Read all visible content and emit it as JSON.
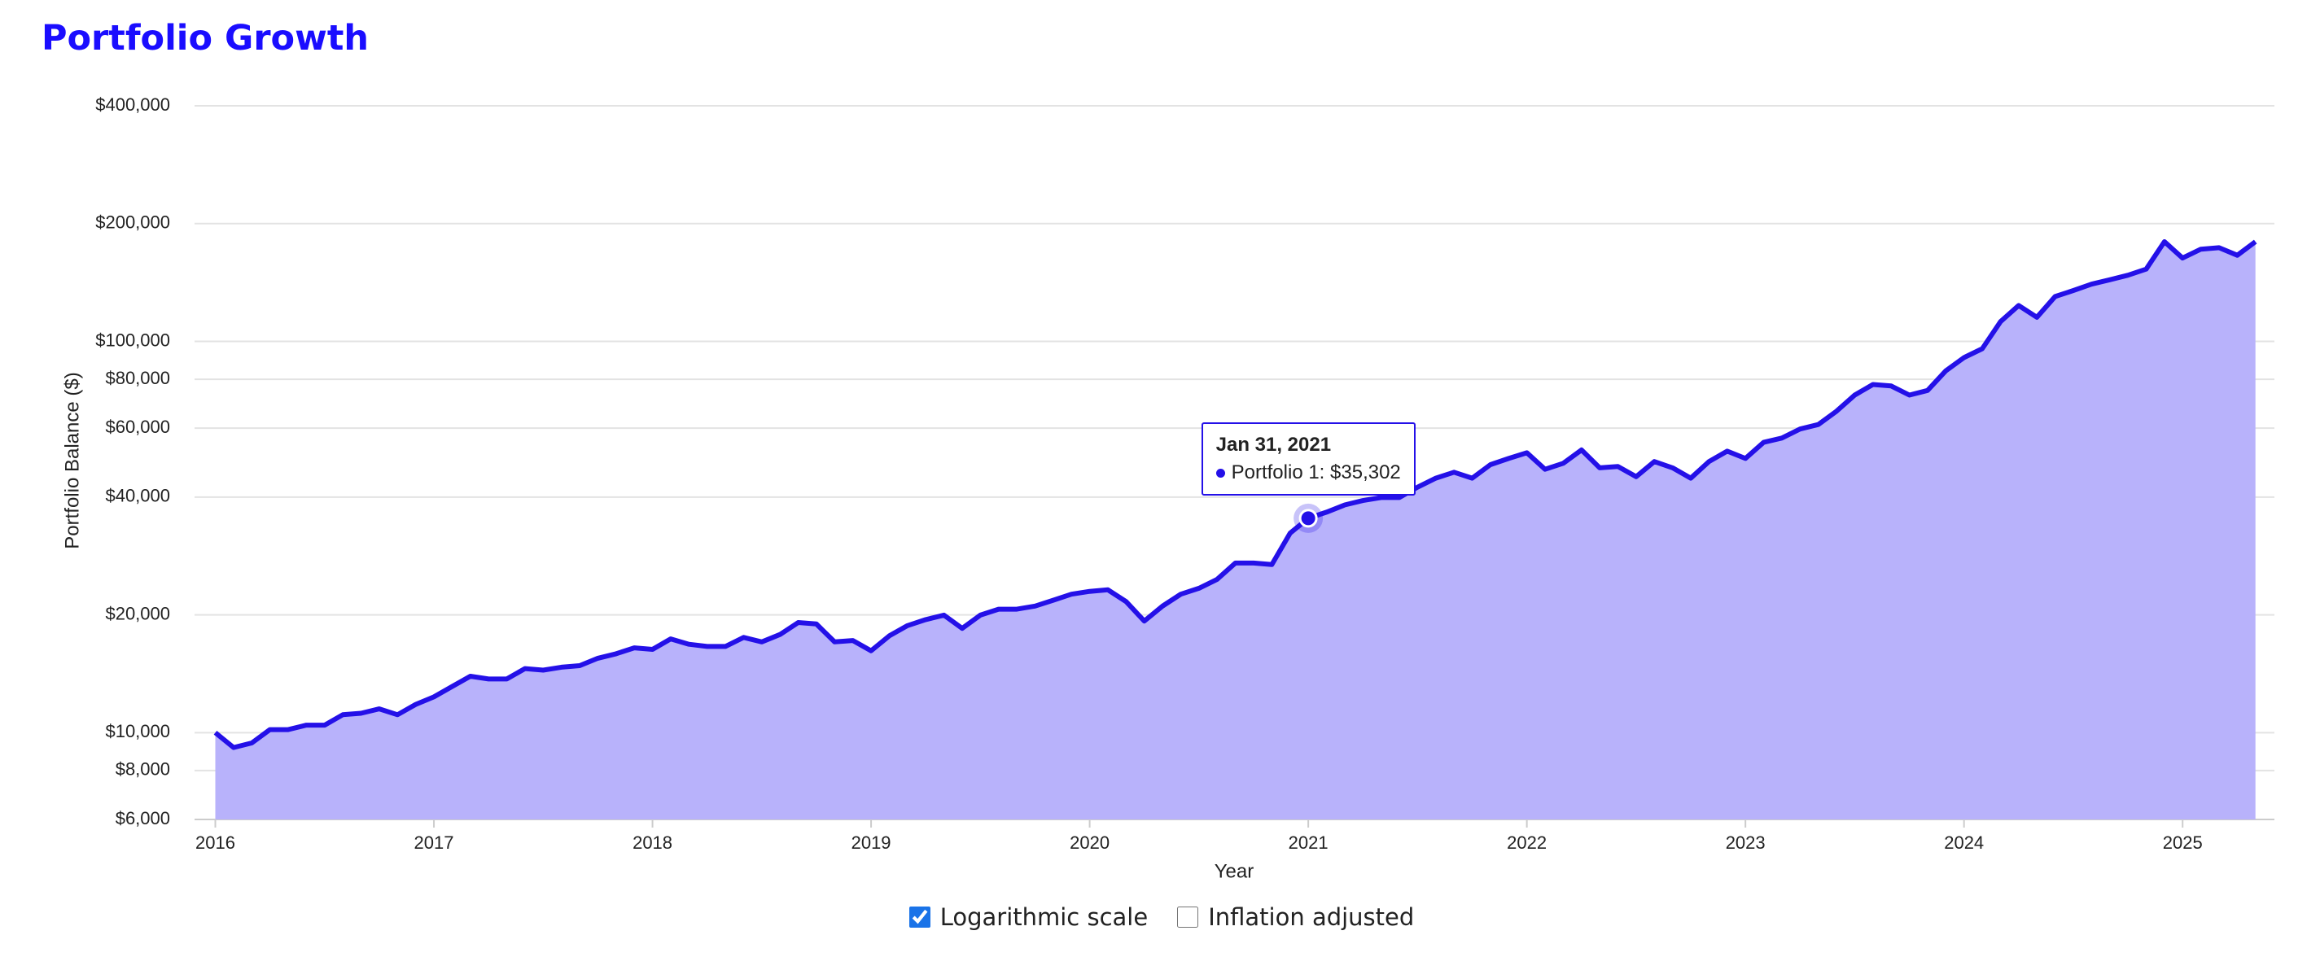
{
  "chart_data": {
    "type": "area",
    "title": "Portfolio Growth",
    "x_label": "Year",
    "y_label": "Portfolio Balance ($)",
    "log_scale": true,
    "grid": true,
    "x": [
      2016,
      2016.0833,
      2016.1667,
      2016.25,
      2016.3333,
      2016.4167,
      2016.5,
      2016.5833,
      2016.6667,
      2016.75,
      2016.8333,
      2016.9167,
      2017,
      2017.0833,
      2017.1667,
      2017.25,
      2017.3333,
      2017.4167,
      2017.5,
      2017.5833,
      2017.6667,
      2017.75,
      2017.8333,
      2017.9167,
      2018,
      2018.0833,
      2018.1667,
      2018.25,
      2018.3333,
      2018.4167,
      2018.5,
      2018.5833,
      2018.6667,
      2018.75,
      2018.8333,
      2018.9167,
      2019,
      2019.0833,
      2019.1667,
      2019.25,
      2019.3333,
      2019.4167,
      2019.5,
      2019.5833,
      2019.6667,
      2019.75,
      2019.8333,
      2019.9167,
      2020,
      2020.0833,
      2020.1667,
      2020.25,
      2020.3333,
      2020.4167,
      2020.5,
      2020.5833,
      2020.6667,
      2020.75,
      2020.8333,
      2020.9167,
      2021,
      2021.0833,
      2021.1667,
      2021.25,
      2021.3333,
      2021.4167,
      2021.5,
      2021.5833,
      2021.6667,
      2021.75,
      2021.8333,
      2021.9167,
      2022,
      2022.0833,
      2022.1667,
      2022.25,
      2022.3333,
      2022.4167,
      2022.5,
      2022.5833,
      2022.6667,
      2022.75,
      2022.8333,
      2022.9167,
      2023,
      2023.0833,
      2023.1667,
      2023.25,
      2023.3333,
      2023.4167,
      2023.5,
      2023.5833,
      2023.6667,
      2023.75,
      2023.8333,
      2023.9167,
      2024,
      2024.0833,
      2024.1667,
      2024.25,
      2024.3333,
      2024.4167,
      2024.5,
      2024.5833,
      2024.6667,
      2024.75,
      2024.8333,
      2024.9167,
      2025,
      2025.0833,
      2025.1667,
      2025.25,
      2025.3333
    ],
    "series": [
      {
        "name": "Portfolio 1",
        "color": "#2410e8",
        "fill": "#b8b2fb",
        "values": [
          10000,
          9160,
          9410,
          10180,
          10180,
          10450,
          10450,
          11110,
          11210,
          11500,
          11110,
          11810,
          12340,
          13120,
          13940,
          13710,
          13710,
          14580,
          14450,
          14700,
          14830,
          15490,
          15910,
          16470,
          16320,
          17360,
          16820,
          16610,
          16610,
          17510,
          17060,
          17820,
          19120,
          18950,
          17060,
          17200,
          16190,
          17670,
          18770,
          19450,
          19970,
          18470,
          19970,
          20680,
          20680,
          21060,
          21800,
          22580,
          22970,
          23180,
          21620,
          19280,
          21060,
          22580,
          23390,
          24650,
          27130,
          27130,
          26900,
          32350,
          35302,
          36600,
          38200,
          39200,
          39900,
          39900,
          42400,
          44700,
          46300,
          44700,
          48400,
          50200,
          51900,
          47100,
          48800,
          52800,
          47500,
          47900,
          45100,
          49300,
          47500,
          44700,
          49300,
          52400,
          50200,
          55200,
          56600,
          59700,
          61300,
          66300,
          72900,
          77600,
          76900,
          72900,
          74900,
          84100,
          90900,
          95800,
          112300,
          123500,
          115200,
          130200,
          134900,
          140000,
          143700,
          147600,
          153000,
          179800,
          163300,
          172000,
          173500,
          166000,
          179800
        ]
      }
    ],
    "xlim": [
      2015.905,
      2025.42
    ],
    "xticks": [
      2016,
      2017,
      2018,
      2019,
      2020,
      2021,
      2022,
      2023,
      2024,
      2025
    ],
    "ylim": [
      6000,
      400000
    ],
    "yticks": [
      {
        "value": 6000,
        "label": "$6,000"
      },
      {
        "value": 8000,
        "label": "$8,000"
      },
      {
        "value": 10000,
        "label": "$10,000"
      },
      {
        "value": 20000,
        "label": "$20,000"
      },
      {
        "value": 40000,
        "label": "$40,000"
      },
      {
        "value": 60000,
        "label": "$60,000"
      },
      {
        "value": 80000,
        "label": "$80,000"
      },
      {
        "value": 100000,
        "label": "$100,000"
      },
      {
        "value": 200000,
        "label": "$200,000"
      },
      {
        "value": 400000,
        "label": "$400,000"
      }
    ],
    "tooltip": {
      "x": 2021,
      "title": "Jan 31, 2021",
      "text": "Portfolio 1: $35,302"
    }
  },
  "controls": [
    {
      "label": "Logarithmic scale",
      "checked": true
    },
    {
      "label": "Inflation adjusted",
      "checked": false
    }
  ]
}
